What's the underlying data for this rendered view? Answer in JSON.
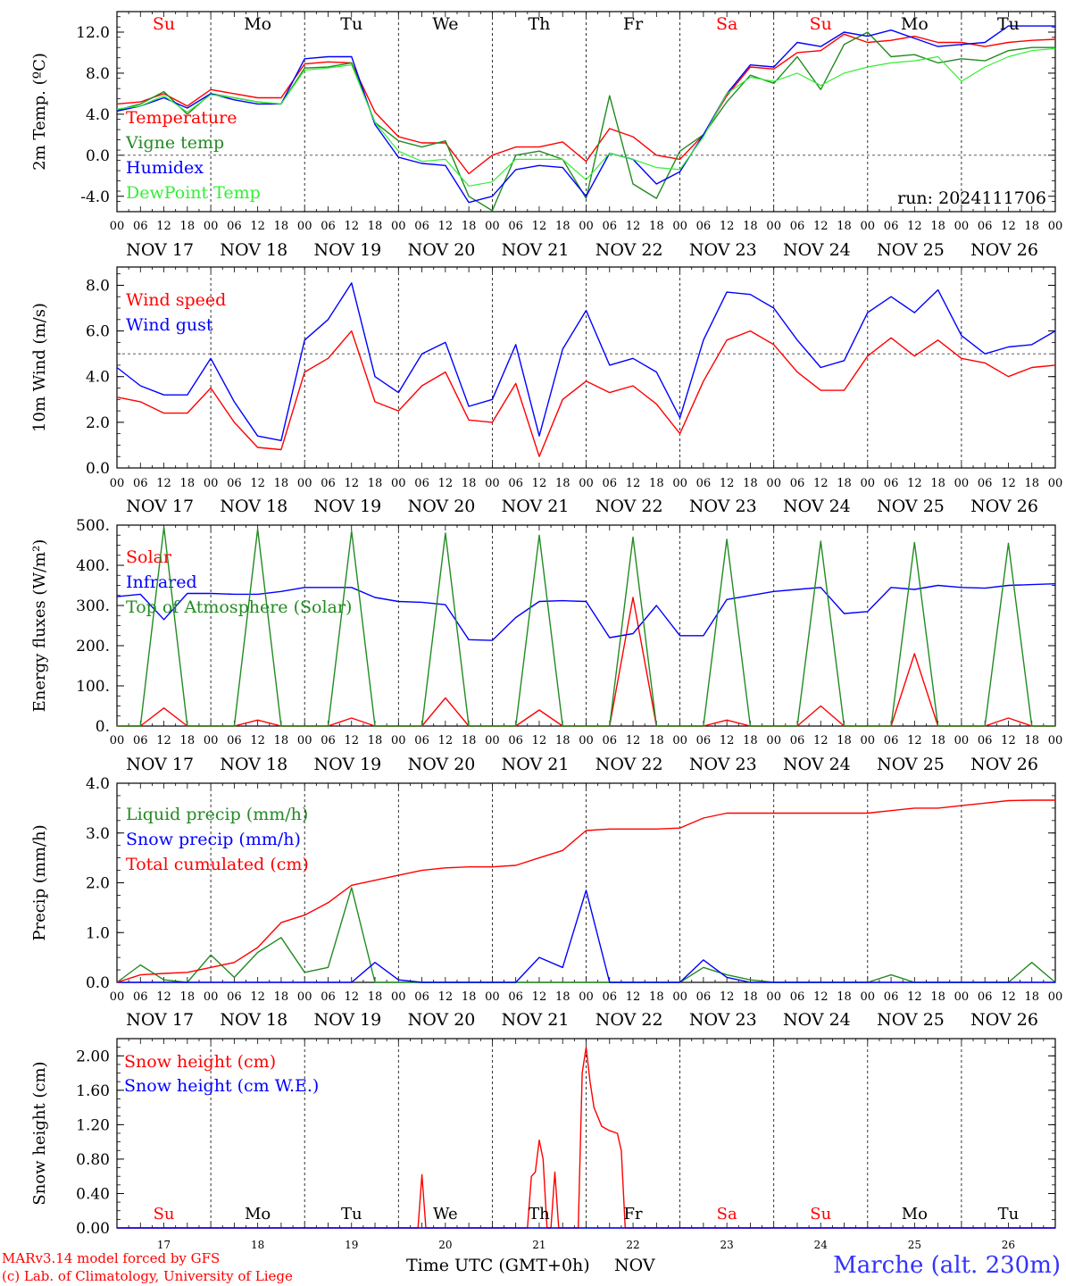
{
  "run_label": "run: 2024111706",
  "day_abbrevs": [
    "Su",
    "Mo",
    "Tu",
    "We",
    "Th",
    "Fr",
    "Sa",
    "Su",
    "Mo",
    "Tu"
  ],
  "day_colors": [
    "#ff0000",
    "#000000",
    "#000000",
    "#000000",
    "#000000",
    "#000000",
    "#ff0000",
    "#ff0000",
    "#000000",
    "#000000"
  ],
  "date_labels": [
    "NOV 17",
    "NOV 18",
    "NOV 19",
    "NOV 20",
    "NOV 21",
    "NOV 22",
    "NOV 23",
    "NOV 24",
    "NOV 25",
    "NOV 26"
  ],
  "hour_ticks": [
    "00",
    "06",
    "12",
    "18"
  ],
  "bottom_day_numbers": [
    "17",
    "18",
    "19",
    "20",
    "21",
    "22",
    "23",
    "24",
    "25",
    "26"
  ],
  "footer": {
    "model": "MARv3.14 model forced by GFS",
    "copyright": "(c) Lab. of Climatology, University of Liege",
    "time_axis": "Time UTC (GMT+0h)",
    "month": "NOV",
    "station": "Marche (alt. 230m)"
  },
  "colors": {
    "red": "#ff0000",
    "green": "#228b22",
    "blue": "#0000ff",
    "lightgreen": "#33ee33"
  },
  "chart_data": [
    {
      "type": "line",
      "ylabel": "2m Temp. (ºC)",
      "ylim": [
        -5.5,
        14.0
      ],
      "yticks": [
        "-4.0",
        "0.0",
        "4.0",
        "8.0",
        "12.0"
      ],
      "ytick_values": [
        -4,
        0,
        4,
        8,
        12
      ],
      "ref_line": 0,
      "x_hours": [
        0,
        6,
        12,
        18,
        24,
        30,
        36,
        42,
        48,
        54,
        60,
        66,
        72,
        78,
        84,
        90,
        96,
        102,
        108,
        114,
        120,
        126,
        132,
        138,
        144,
        150,
        156,
        162,
        168,
        174,
        180,
        186,
        192,
        198,
        204,
        210,
        216,
        222,
        228,
        234,
        240
      ],
      "series": [
        {
          "name": "Temperature",
          "color": "red",
          "values": [
            5.0,
            5.2,
            6.0,
            4.8,
            6.4,
            6.0,
            5.6,
            5.6,
            8.9,
            9.1,
            9.0,
            4.2,
            1.8,
            1.2,
            1.2,
            -1.8,
            0.0,
            0.8,
            0.8,
            1.3,
            -0.6,
            2.6,
            1.8,
            0.0,
            -0.4,
            2.0,
            5.8,
            8.6,
            8.4,
            10.0,
            10.2,
            11.8,
            11.0,
            11.2,
            11.6,
            11.0,
            11.0,
            10.6,
            11.0,
            11.2,
            11.3
          ]
        },
        {
          "name": "Vigne temp",
          "color": "green",
          "values": [
            4.4,
            5.0,
            6.2,
            4.0,
            6.0,
            5.6,
            5.2,
            5.0,
            8.5,
            8.6,
            9.0,
            3.2,
            1.4,
            0.8,
            1.4,
            -4.0,
            -5.4,
            0.0,
            0.4,
            -0.4,
            -4.2,
            5.8,
            -2.8,
            -4.2,
            0.4,
            2.0,
            5.2,
            7.8,
            7.0,
            9.6,
            6.4,
            10.8,
            12.0,
            9.6,
            9.8,
            9.0,
            9.4,
            9.2,
            10.2,
            10.5,
            10.5
          ]
        },
        {
          "name": "Humidex",
          "color": "blue",
          "values": [
            4.3,
            4.8,
            5.6,
            4.6,
            6.0,
            5.4,
            5.0,
            5.0,
            9.4,
            9.6,
            9.6,
            3.0,
            -0.2,
            -0.8,
            -1.0,
            -4.6,
            -4.0,
            -1.4,
            -1.0,
            -1.2,
            -4.0,
            0.2,
            -0.4,
            -2.8,
            -1.6,
            2.0,
            6.0,
            8.8,
            8.6,
            11.0,
            10.6,
            12.0,
            11.6,
            12.2,
            11.4,
            10.6,
            10.8,
            11.0,
            12.6,
            12.6,
            12.6
          ]
        },
        {
          "name": "DewPoint Temp",
          "color": "lightgreen",
          "values": [
            4.5,
            4.8,
            5.8,
            4.2,
            5.9,
            5.6,
            5.2,
            5.0,
            8.3,
            8.5,
            8.8,
            3.2,
            0.4,
            -0.6,
            -0.4,
            -3.0,
            -2.6,
            -0.4,
            -0.4,
            -0.4,
            -2.4,
            0.2,
            -0.4,
            -1.2,
            -1.4,
            1.8,
            6.0,
            7.6,
            7.2,
            8.0,
            6.8,
            8.0,
            8.6,
            9.0,
            9.2,
            9.6,
            7.2,
            8.6,
            9.6,
            10.2,
            10.4
          ]
        }
      ]
    },
    {
      "type": "line",
      "ylabel": "10m Wind (m/s)",
      "ylim": [
        0.0,
        8.8
      ],
      "yticks": [
        "0.0",
        "2.0",
        "4.0",
        "6.0",
        "8.0"
      ],
      "ytick_values": [
        0,
        2,
        4,
        6,
        8
      ],
      "ref_line": 5,
      "x_hours": [
        0,
        6,
        12,
        18,
        24,
        30,
        36,
        42,
        48,
        54,
        60,
        66,
        72,
        78,
        84,
        90,
        96,
        102,
        108,
        114,
        120,
        126,
        132,
        138,
        144,
        150,
        156,
        162,
        168,
        174,
        180,
        186,
        192,
        198,
        204,
        210,
        216,
        222,
        228,
        234,
        240
      ],
      "series": [
        {
          "name": "Wind speed",
          "color": "red",
          "values": [
            3.1,
            2.9,
            2.4,
            2.4,
            3.5,
            2.0,
            0.9,
            0.8,
            4.2,
            4.8,
            6.0,
            2.9,
            2.5,
            3.6,
            4.2,
            2.1,
            2.0,
            3.7,
            0.5,
            3.0,
            3.8,
            3.3,
            3.6,
            2.8,
            1.5,
            3.8,
            5.6,
            6.0,
            5.4,
            4.2,
            3.4,
            3.4,
            4.9,
            5.7,
            4.9,
            5.6,
            4.8,
            4.6,
            4.0,
            4.4,
            4.5
          ]
        },
        {
          "name": "Wind gust",
          "color": "blue",
          "values": [
            4.4,
            3.6,
            3.2,
            3.2,
            4.8,
            2.9,
            1.4,
            1.2,
            5.6,
            6.5,
            8.1,
            4.0,
            3.3,
            5.0,
            5.5,
            2.7,
            3.0,
            5.4,
            1.4,
            5.2,
            6.9,
            4.5,
            4.8,
            4.2,
            2.2,
            5.6,
            7.7,
            7.6,
            7.0,
            5.6,
            4.4,
            4.7,
            6.8,
            7.5,
            6.8,
            7.8,
            5.8,
            5.0,
            5.3,
            5.4,
            6.0
          ]
        }
      ]
    },
    {
      "type": "line",
      "ylabel": "Energy fluxes (W/m²)",
      "ylim": [
        0,
        500
      ],
      "yticks": [
        "0.",
        "100.",
        "200.",
        "300.",
        "400.",
        "500."
      ],
      "ytick_values": [
        0,
        100,
        200,
        300,
        400,
        500
      ],
      "ref_line": null,
      "x_hours": [
        0,
        6,
        12,
        18,
        24,
        30,
        36,
        42,
        48,
        54,
        60,
        66,
        72,
        78,
        84,
        90,
        96,
        102,
        108,
        114,
        120,
        126,
        132,
        138,
        144,
        150,
        156,
        162,
        168,
        174,
        180,
        186,
        192,
        198,
        204,
        210,
        216,
        222,
        228,
        234,
        240
      ],
      "series": [
        {
          "name": "Solar",
          "color": "red",
          "values": [
            0,
            0,
            45,
            0,
            0,
            0,
            15,
            0,
            0,
            0,
            20,
            0,
            0,
            0,
            70,
            0,
            0,
            0,
            40,
            0,
            0,
            0,
            320,
            0,
            0,
            0,
            15,
            0,
            0,
            0,
            50,
            0,
            0,
            0,
            180,
            0,
            0,
            0,
            20,
            0,
            0
          ]
        },
        {
          "name": "Infrared",
          "color": "blue",
          "values": [
            322,
            328,
            265,
            330,
            330,
            328,
            328,
            335,
            345,
            345,
            345,
            320,
            310,
            308,
            302,
            215,
            213,
            270,
            310,
            312,
            310,
            220,
            230,
            300,
            225,
            225,
            315,
            325,
            335,
            340,
            345,
            280,
            285,
            345,
            340,
            350,
            345,
            343,
            350,
            352,
            354
          ]
        },
        {
          "name": "Top of Atmosphere (Solar)",
          "color": "green",
          "values": [
            0,
            0,
            495,
            0,
            0,
            0,
            490,
            0,
            0,
            0,
            485,
            0,
            0,
            0,
            480,
            0,
            0,
            0,
            475,
            0,
            0,
            0,
            470,
            0,
            0,
            0,
            465,
            0,
            0,
            0,
            460,
            0,
            0,
            0,
            457,
            0,
            0,
            0,
            455,
            0,
            0
          ]
        }
      ]
    },
    {
      "type": "line",
      "ylabel": "Precip (mm/h)",
      "ylim": [
        0.0,
        4.0
      ],
      "yticks": [
        "0.0",
        "1.0",
        "2.0",
        "3.0",
        "4.0"
      ],
      "ytick_values": [
        0,
        1,
        2,
        3,
        4
      ],
      "ref_line": null,
      "x_hours": [
        0,
        6,
        12,
        18,
        24,
        30,
        36,
        42,
        48,
        54,
        60,
        66,
        72,
        78,
        84,
        90,
        96,
        102,
        108,
        114,
        120,
        126,
        132,
        138,
        144,
        150,
        156,
        162,
        168,
        174,
        180,
        186,
        192,
        198,
        204,
        210,
        216,
        222,
        228,
        234,
        240
      ],
      "series": [
        {
          "name": "Liquid precip (mm/h)",
          "color": "green",
          "values": [
            0.0,
            0.35,
            0.05,
            0.0,
            0.55,
            0.1,
            0.6,
            0.9,
            0.2,
            0.3,
            1.9,
            0.0,
            0.0,
            0.0,
            0.0,
            0.0,
            0.0,
            0.0,
            0.0,
            0.0,
            0.0,
            0.0,
            0.0,
            0.0,
            0.0,
            0.3,
            0.15,
            0.05,
            0.0,
            0.0,
            0.0,
            0.0,
            0.0,
            0.15,
            0.0,
            0.0,
            0.0,
            0.0,
            0.0,
            0.4,
            0.0
          ]
        },
        {
          "name": "Snow precip (mm/h)",
          "color": "blue",
          "values": [
            0,
            0,
            0,
            0,
            0,
            0,
            0,
            0,
            0,
            0,
            0,
            0.4,
            0.05,
            0.0,
            0.0,
            0.0,
            0.0,
            0.0,
            0.5,
            0.3,
            1.85,
            0.0,
            0.0,
            0.0,
            0.0,
            0.45,
            0.1,
            0.0,
            0.0,
            0.0,
            0.0,
            0.0,
            0.0,
            0.0,
            0.0,
            0.0,
            0.0,
            0.0,
            0.0,
            0.0,
            0.0
          ]
        },
        {
          "name": "Total cumulated (cm)",
          "color": "red",
          "values": [
            0.0,
            0.15,
            0.18,
            0.2,
            0.3,
            0.4,
            0.7,
            1.2,
            1.35,
            1.6,
            1.95,
            2.05,
            2.15,
            2.25,
            2.3,
            2.32,
            2.32,
            2.35,
            2.5,
            2.65,
            3.05,
            3.08,
            3.08,
            3.08,
            3.1,
            3.3,
            3.4,
            3.4,
            3.4,
            3.4,
            3.4,
            3.4,
            3.4,
            3.45,
            3.5,
            3.5,
            3.55,
            3.6,
            3.65,
            3.66,
            3.66
          ]
        }
      ]
    },
    {
      "type": "line",
      "ylabel": "Snow height (cm)",
      "ylim": [
        0.0,
        2.2
      ],
      "yticks": [
        "0.00",
        "0.40",
        "0.80",
        "1.20",
        "1.60",
        "2.00"
      ],
      "ytick_values": [
        0,
        0.4,
        0.8,
        1.2,
        1.6,
        2.0
      ],
      "ref_line": null,
      "series": [
        {
          "name": "Snow height (cm)",
          "color": "red",
          "points": [
            [
              0,
              0
            ],
            [
              77,
              0
            ],
            [
              78,
              0.62
            ],
            [
              79,
              0
            ],
            [
              105,
              0
            ],
            [
              106,
              0.6
            ],
            [
              107,
              0.65
            ],
            [
              108,
              1.02
            ],
            [
              109,
              0.8
            ],
            [
              110,
              0
            ],
            [
              111,
              0
            ],
            [
              112,
              0.65
            ],
            [
              113,
              0
            ],
            [
              118,
              0
            ],
            [
              119,
              1.8
            ],
            [
              120,
              2.1
            ],
            [
              121,
              1.7
            ],
            [
              122,
              1.4
            ],
            [
              124,
              1.18
            ],
            [
              126,
              1.13
            ],
            [
              128,
              1.1
            ],
            [
              129,
              0.9
            ],
            [
              130,
              0
            ],
            [
              240,
              0
            ]
          ]
        },
        {
          "name": "Snow height (cm W.E.)",
          "color": "blue",
          "points": [
            [
              0,
              0
            ],
            [
              240,
              0
            ]
          ]
        }
      ]
    }
  ]
}
